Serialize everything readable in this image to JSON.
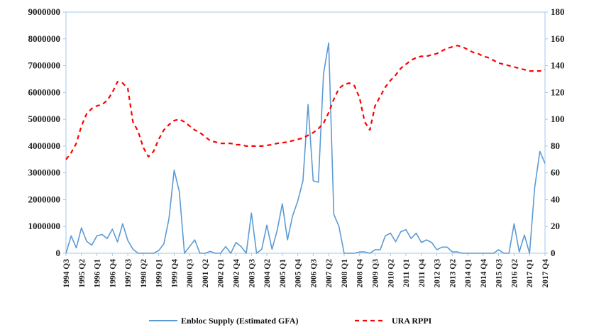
{
  "chart_data": {
    "type": "line",
    "title": "",
    "legend_position": "bottom",
    "grid": false,
    "colors": {
      "supply": "#5b9bd5",
      "rppi": "#ff0000",
      "axis": "#a6c8e8"
    },
    "x": [
      "1994 Q3",
      "1994 Q4",
      "1995 Q1",
      "1995 Q2",
      "1995 Q3",
      "1995 Q4",
      "1996 Q1",
      "1996 Q2",
      "1996 Q3",
      "1996 Q4",
      "1997 Q1",
      "1997 Q2",
      "1997 Q3",
      "1997 Q4",
      "1998 Q1",
      "1998 Q2",
      "1998 Q3",
      "1998 Q4",
      "1999 Q1",
      "1999 Q2",
      "1999 Q3",
      "1999 Q4",
      "2000 Q1",
      "2000 Q2",
      "2000 Q3",
      "2000 Q4",
      "2001 Q1",
      "2001 Q2",
      "2001 Q3",
      "2001 Q4",
      "2002 Q1",
      "2002 Q2",
      "2002 Q3",
      "2002 Q4",
      "2003 Q1",
      "2003 Q2",
      "2003 Q3",
      "2003 Q4",
      "2004 Q1",
      "2004 Q2",
      "2004 Q3",
      "2004 Q4",
      "2005 Q1",
      "2005 Q2",
      "2005 Q3",
      "2005 Q4",
      "2006 Q1",
      "2006 Q2",
      "2006 Q3",
      "2006 Q4",
      "2007 Q1",
      "2007 Q2",
      "2007 Q3",
      "2007 Q4",
      "2008 Q1",
      "2008 Q2",
      "2008 Q3",
      "2008 Q4",
      "2009 Q1",
      "2009 Q2",
      "2009 Q3",
      "2009 Q4",
      "2010 Q1",
      "2010 Q2",
      "2010 Q3",
      "2010 Q4",
      "2011 Q1",
      "2011 Q2",
      "2011 Q3",
      "2011 Q4",
      "2012 Q1",
      "2012 Q2",
      "2012 Q3",
      "2012 Q4",
      "2013 Q1",
      "2013 Q2",
      "2013 Q3",
      "2013 Q4",
      "2014 Q1",
      "2014 Q2",
      "2014 Q3",
      "2014 Q4",
      "2015 Q1",
      "2015 Q2",
      "2015 Q3",
      "2015 Q4",
      "2016 Q1",
      "2016 Q2",
      "2016 Q3",
      "2016 Q4",
      "2017 Q1",
      "2017 Q2",
      "2017 Q3",
      "2017 Q4"
    ],
    "x_tick_labels": [
      "1994 Q3",
      "1995 Q2",
      "1996 Q1",
      "1996 Q4",
      "1997 Q3",
      "1998 Q2",
      "1999 Q1",
      "1999 Q4",
      "2000 Q3",
      "2001 Q2",
      "2002 Q1",
      "2002 Q4",
      "2003 Q3",
      "2004 Q2",
      "2005 Q1",
      "2005 Q4",
      "2006 Q3",
      "2007 Q2",
      "2008 Q1",
      "2008 Q4",
      "2009 Q3",
      "2010 Q2",
      "2011 Q1",
      "2011 Q4",
      "2012 Q3",
      "2013 Q2",
      "2014 Q1",
      "2014 Q4",
      "2015 Q3",
      "2016 Q2",
      "2017 Q1",
      "2017 Q4"
    ],
    "x_tick_display": [
      "1994 Q3",
      "1995 Q2",
      "1996 Q1",
      "1996 Q4",
      "1997 Q3",
      "1998 Q2",
      "1999 Q1",
      "1999 Q4",
      "2000 Q3",
      "2001 Q2",
      "2002 Q1",
      "2002 Q4",
      "2003 Q3",
      "2004 Q2",
      "2005 Q1",
      "2005 Q4",
      "2006 Q3",
      "2007 Q2",
      "2008 Q1",
      "2008 Q4",
      "2009 Q3",
      "2010 Q2",
      "2011 Q1",
      "2011 Q4",
      "2012 Q3",
      "2013 Q2",
      "2014 Q1",
      "2014 Q4",
      "2015 Q3",
      "2016 Q2",
      "2017 Q1",
      "2017 Q4"
    ],
    "y_left": {
      "ylim": [
        0,
        9000000
      ],
      "ticks": [
        "0",
        "1000000",
        "2000000",
        "3000000",
        "4000000",
        "5000000",
        "6000000",
        "7000000",
        "8000000",
        "9000000"
      ]
    },
    "y_right": {
      "ylim": [
        0,
        180
      ],
      "ticks": [
        "0",
        "20",
        "40",
        "60",
        "80",
        "100",
        "120",
        "140",
        "160",
        "180"
      ]
    },
    "series": [
      {
        "name": "Enbloc Supply (Estimated GFA)",
        "axis": "left",
        "style": "solid",
        "values": [
          0,
          650000,
          200000,
          950000,
          450000,
          300000,
          650000,
          700000,
          550000,
          900000,
          420000,
          1100000,
          480000,
          150000,
          0,
          0,
          0,
          0,
          100000,
          350000,
          1300000,
          3100000,
          2300000,
          0,
          250000,
          500000,
          0,
          0,
          70000,
          0,
          0,
          250000,
          0,
          400000,
          250000,
          0,
          1500000,
          0,
          150000,
          1050000,
          150000,
          850000,
          1850000,
          500000,
          1400000,
          1950000,
          2700000,
          5550000,
          2700000,
          2650000,
          6700000,
          7850000,
          1450000,
          1000000,
          0,
          0,
          0,
          50000,
          50000,
          0,
          130000,
          130000,
          650000,
          750000,
          430000,
          800000,
          880000,
          550000,
          750000,
          400000,
          500000,
          400000,
          130000,
          230000,
          230000,
          50000,
          50000,
          0,
          0,
          0,
          0,
          0,
          0,
          0,
          130000,
          0,
          0,
          1100000,
          50000,
          680000,
          0,
          2450000,
          3800000,
          3350000
        ]
      },
      {
        "name": "URA RPPI",
        "axis": "right",
        "style": "dashed",
        "values": [
          70,
          75,
          82,
          95,
          104,
          108,
          110,
          111,
          114,
          120,
          128,
          127,
          123,
          98,
          91,
          79,
          72,
          76,
          85,
          92,
          96,
          99,
          100,
          98,
          95,
          92,
          90,
          87,
          84,
          83,
          82,
          82,
          82,
          81,
          81,
          80,
          80,
          80,
          80,
          80.5,
          81,
          82,
          82.5,
          83,
          84,
          85,
          86,
          88,
          90,
          93,
          97,
          105,
          115,
          123,
          126,
          127,
          125,
          116,
          98,
          92,
          110,
          117,
          124,
          129,
          133,
          138,
          141,
          144,
          146,
          147,
          147,
          148,
          149,
          151,
          153,
          154,
          155,
          154,
          152,
          150,
          149,
          147,
          146,
          144,
          142,
          141,
          140,
          139,
          138,
          137,
          136,
          136,
          136,
          137
        ]
      }
    ]
  }
}
